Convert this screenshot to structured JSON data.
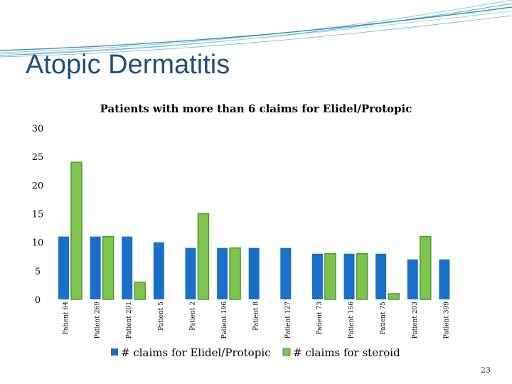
{
  "slide": {
    "title": "Atopic Dermatitis",
    "page_number": "23"
  },
  "colors": {
    "title": "#1f4e79",
    "series_elidel": "#1a6fc9",
    "series_steroid": "#7ec451",
    "series_steroid_border": "#4f9a2a"
  },
  "chart_data": {
    "type": "bar",
    "title": "Patients with more than 6 claims for Elidel/Protopic",
    "xlabel": "",
    "ylabel": "",
    "ylim": [
      0,
      30
    ],
    "yticks": [
      0,
      5,
      10,
      15,
      20,
      25,
      30
    ],
    "grid": false,
    "legend_position": "bottom",
    "categories": [
      "Patient 64",
      "Patient 269",
      "Patient 201",
      "Patient 5",
      "Patient 2",
      "Patient 196",
      "Patient 8",
      "Patient 127",
      "Patient 73",
      "Patient 156",
      "Patient 75",
      "Patient 203",
      "Patient 399"
    ],
    "series": [
      {
        "name": "# claims for Elidel/Protopic",
        "values": [
          11,
          11,
          11,
          10,
          9,
          9,
          9,
          9,
          8,
          8,
          8,
          7,
          7
        ]
      },
      {
        "name": "# claims for steroid",
        "values": [
          24,
          11,
          3,
          0,
          15,
          9,
          0,
          0,
          8,
          8,
          1,
          11,
          0
        ]
      }
    ]
  }
}
